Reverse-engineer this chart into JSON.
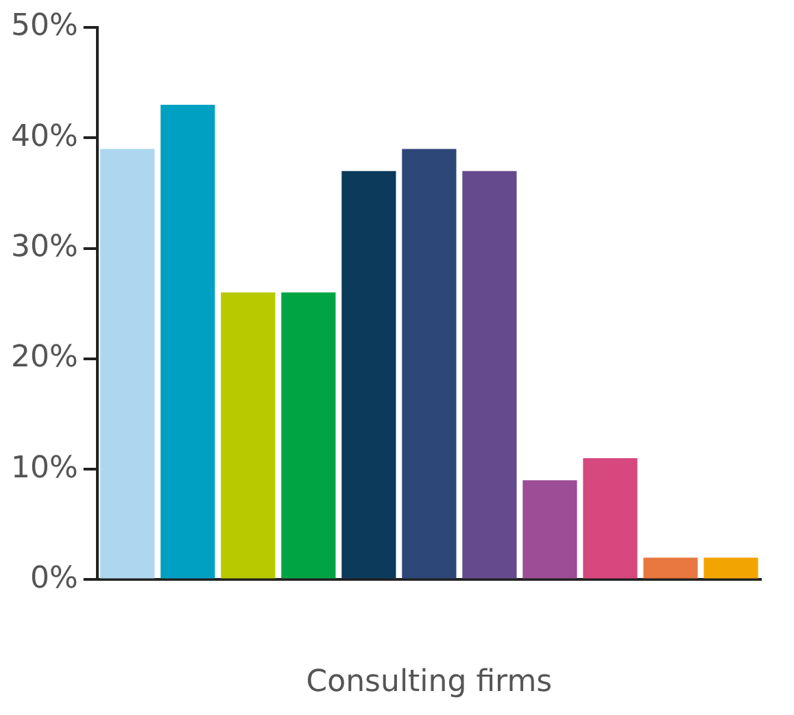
{
  "chart_data": {
    "type": "bar",
    "xlabel": "Consulting firms",
    "categories": [
      null,
      null,
      null,
      null,
      null,
      null,
      null,
      null,
      null,
      null,
      null
    ],
    "values": [
      39,
      43,
      26,
      26,
      37,
      39,
      37,
      9,
      11,
      2,
      2
    ],
    "colors": [
      "#acd7ee",
      "#00a0c3",
      "#b9c900",
      "#00a443",
      "#0b3a5a",
      "#2e4779",
      "#654a8e",
      "#9d4c96",
      "#d7487e",
      "#e97740",
      "#f2a500"
    ],
    "ylim": [
      0,
      50
    ],
    "yticks": [
      {
        "value": 0,
        "label": "0%"
      },
      {
        "value": 10,
        "label": "10%"
      },
      {
        "value": 20,
        "label": "20%"
      },
      {
        "value": 30,
        "label": "30%"
      },
      {
        "value": 40,
        "label": "40%"
      },
      {
        "value": 50,
        "label": "50%"
      }
    ],
    "grid": false,
    "legend": false
  }
}
